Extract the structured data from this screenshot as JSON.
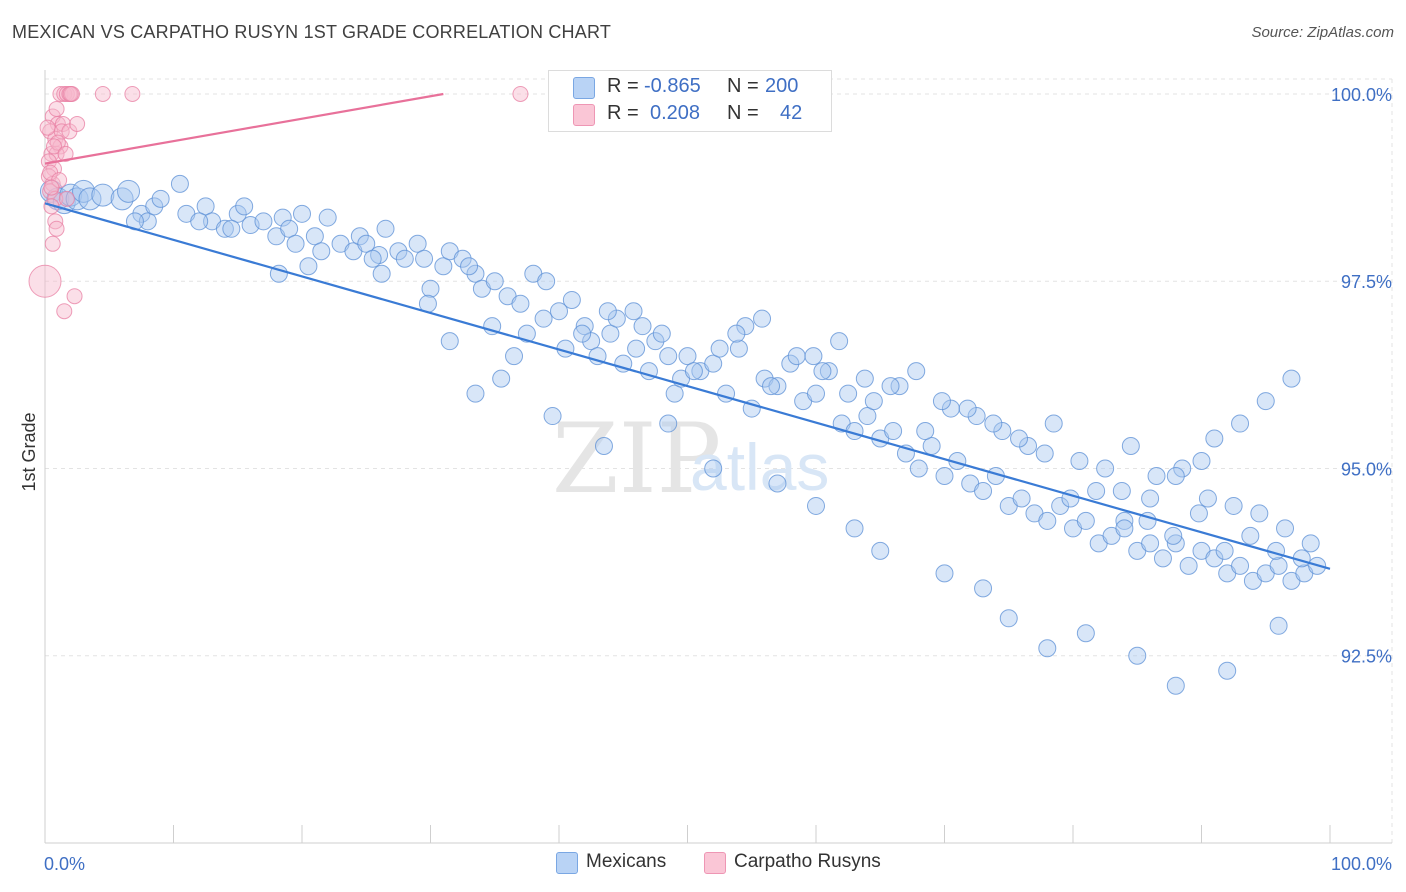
{
  "title": "MEXICAN VS CARPATHO RUSYN 1ST GRADE CORRELATION CHART",
  "source": "Source: ZipAtlas.com",
  "watermark": {
    "zip": "ZIP",
    "atlas": "atlas"
  },
  "legend": {
    "rows": [
      {
        "r_label": "R =",
        "r_value": "-0.865",
        "n_label": "N =",
        "n_value": "200"
      },
      {
        "r_label": "R =",
        "r_value": "0.208",
        "n_label": "N =",
        "n_value": "42"
      }
    ]
  },
  "bottom_legend": [
    "Mexicans",
    "Carpatho Rusyns"
  ],
  "colors": {
    "blue_fill": "#a9c7ef",
    "blue_stroke": "#5b8fd6",
    "blue_line": "#3a7bd5",
    "pink_fill": "#f7b9cd",
    "pink_stroke": "#e87fa3",
    "pink_line": "#e8719a",
    "tick_text": "#3f6fc4"
  },
  "chart_data": {
    "type": "scatter",
    "title": "MEXICAN VS CARPATHO RUSYN 1ST GRADE CORRELATION CHART",
    "xlabel": "",
    "ylabel": "1st Grade",
    "xlim": [
      0,
      100
    ],
    "ylim": [
      90.0,
      100.2
    ],
    "x_tick_labels": [
      "0.0%",
      "100.0%"
    ],
    "y_ticks": [
      92.5,
      95.0,
      97.5,
      100.0
    ],
    "y_tick_labels": [
      "92.5%",
      "95.0%",
      "97.5%",
      "100.0%"
    ],
    "grid": true,
    "series": [
      {
        "name": "Mexicans",
        "r": -0.865,
        "n": 200,
        "trend": {
          "x": [
            0,
            100
          ],
          "y": [
            98.54,
            93.66
          ]
        },
        "points": [
          [
            0.5,
            98.7
          ],
          [
            1.0,
            98.6
          ],
          [
            1.5,
            98.55
          ],
          [
            2.0,
            98.65
          ],
          [
            2.5,
            98.6
          ],
          [
            3.0,
            98.7
          ],
          [
            3.5,
            98.6
          ],
          [
            4.5,
            98.65
          ],
          [
            6.0,
            98.6
          ],
          [
            6.5,
            98.7
          ],
          [
            7.5,
            98.4
          ],
          [
            8.0,
            98.3
          ],
          [
            8.5,
            98.5
          ],
          [
            9.0,
            98.6
          ],
          [
            11.0,
            98.4
          ],
          [
            12.5,
            98.5
          ],
          [
            13.0,
            98.3
          ],
          [
            14.0,
            98.2
          ],
          [
            15.0,
            98.4
          ],
          [
            15.5,
            98.5
          ],
          [
            16.0,
            98.25
          ],
          [
            17.0,
            98.3
          ],
          [
            18.0,
            98.1
          ],
          [
            18.5,
            98.35
          ],
          [
            19.0,
            98.2
          ],
          [
            20.0,
            98.4
          ],
          [
            21.0,
            98.1
          ],
          [
            22.0,
            98.35
          ],
          [
            23.0,
            98.0
          ],
          [
            24.0,
            97.9
          ],
          [
            24.5,
            98.1
          ],
          [
            25.0,
            98.0
          ],
          [
            26.0,
            97.85
          ],
          [
            26.5,
            98.2
          ],
          [
            27.5,
            97.9
          ],
          [
            29.0,
            98.0
          ],
          [
            29.5,
            97.8
          ],
          [
            31.0,
            97.7
          ],
          [
            31.5,
            97.9
          ],
          [
            32.5,
            97.8
          ],
          [
            33.5,
            97.6
          ],
          [
            34.0,
            97.4
          ],
          [
            35.0,
            97.5
          ],
          [
            36.0,
            97.3
          ],
          [
            37.0,
            97.2
          ],
          [
            38.0,
            97.6
          ],
          [
            39.0,
            97.5
          ],
          [
            40.0,
            97.1
          ],
          [
            41.0,
            97.25
          ],
          [
            42.0,
            96.9
          ],
          [
            42.5,
            96.7
          ],
          [
            43.0,
            96.5
          ],
          [
            44.0,
            96.8
          ],
          [
            45.0,
            96.4
          ],
          [
            46.0,
            96.6
          ],
          [
            47.0,
            96.3
          ],
          [
            47.5,
            96.7
          ],
          [
            48.0,
            96.8
          ],
          [
            49.0,
            96.0
          ],
          [
            49.5,
            96.2
          ],
          [
            50.0,
            96.5
          ],
          [
            51.0,
            96.3
          ],
          [
            52.0,
            96.4
          ],
          [
            53.0,
            96.0
          ],
          [
            54.0,
            96.6
          ],
          [
            55.0,
            95.8
          ],
          [
            56.0,
            96.2
          ],
          [
            57.0,
            96.1
          ],
          [
            58.0,
            96.4
          ],
          [
            59.0,
            95.9
          ],
          [
            60.0,
            96.0
          ],
          [
            61.0,
            96.3
          ],
          [
            62.0,
            95.6
          ],
          [
            63.0,
            95.5
          ],
          [
            64.0,
            95.7
          ],
          [
            65.0,
            95.4
          ],
          [
            66.0,
            95.5
          ],
          [
            67.0,
            95.2
          ],
          [
            68.0,
            95.0
          ],
          [
            69.0,
            95.3
          ],
          [
            70.0,
            94.9
          ],
          [
            71.0,
            95.1
          ],
          [
            72.0,
            94.8
          ],
          [
            73.0,
            94.7
          ],
          [
            74.0,
            94.9
          ],
          [
            75.0,
            94.5
          ],
          [
            76.0,
            94.6
          ],
          [
            77.0,
            94.4
          ],
          [
            78.0,
            94.3
          ],
          [
            79.0,
            94.5
          ],
          [
            80.0,
            94.2
          ],
          [
            81.0,
            94.3
          ],
          [
            82.0,
            94.0
          ],
          [
            83.0,
            94.1
          ],
          [
            84.0,
            94.3
          ],
          [
            85.0,
            93.9
          ],
          [
            86.0,
            94.0
          ],
          [
            87.0,
            93.8
          ],
          [
            88.0,
            94.0
          ],
          [
            89.0,
            93.7
          ],
          [
            90.0,
            93.9
          ],
          [
            91.0,
            93.8
          ],
          [
            92.0,
            93.6
          ],
          [
            93.0,
            93.7
          ],
          [
            94.0,
            93.5
          ],
          [
            95.0,
            93.6
          ],
          [
            96.0,
            93.7
          ],
          [
            97.0,
            93.5
          ],
          [
            98.0,
            93.6
          ],
          [
            99.0,
            93.7
          ],
          [
            10.5,
            98.8
          ],
          [
            14.5,
            98.2
          ],
          [
            21.5,
            97.9
          ],
          [
            28.0,
            97.8
          ],
          [
            30.0,
            97.4
          ],
          [
            33.0,
            97.7
          ],
          [
            37.5,
            96.8
          ],
          [
            40.5,
            96.6
          ],
          [
            44.5,
            97.0
          ],
          [
            46.5,
            96.9
          ],
          [
            48.5,
            96.5
          ],
          [
            50.5,
            96.3
          ],
          [
            52.5,
            96.6
          ],
          [
            54.5,
            96.9
          ],
          [
            56.5,
            96.1
          ],
          [
            58.5,
            96.5
          ],
          [
            60.5,
            96.3
          ],
          [
            62.5,
            96.0
          ],
          [
            64.5,
            95.9
          ],
          [
            66.5,
            96.1
          ],
          [
            68.5,
            95.5
          ],
          [
            70.5,
            95.8
          ],
          [
            72.5,
            95.7
          ],
          [
            74.5,
            95.5
          ],
          [
            76.5,
            95.3
          ],
          [
            78.5,
            95.6
          ],
          [
            80.5,
            95.1
          ],
          [
            82.5,
            95.0
          ],
          [
            84.5,
            95.3
          ],
          [
            86.5,
            94.9
          ],
          [
            88.5,
            95.0
          ],
          [
            90.5,
            94.6
          ],
          [
            92.5,
            94.5
          ],
          [
            94.5,
            94.4
          ],
          [
            96.5,
            94.2
          ],
          [
            98.5,
            94.0
          ],
          [
            7.0,
            98.3
          ],
          [
            12.0,
            98.3
          ],
          [
            19.5,
            98.0
          ],
          [
            25.5,
            97.8
          ],
          [
            20.5,
            97.7
          ],
          [
            26.2,
            97.6
          ],
          [
            29.8,
            97.2
          ],
          [
            34.8,
            96.9
          ],
          [
            38.8,
            97.0
          ],
          [
            41.8,
            96.8
          ],
          [
            43.8,
            97.1
          ],
          [
            45.8,
            97.1
          ],
          [
            53.8,
            96.8
          ],
          [
            55.8,
            97.0
          ],
          [
            59.8,
            96.5
          ],
          [
            61.8,
            96.7
          ],
          [
            63.8,
            96.2
          ],
          [
            65.8,
            96.1
          ],
          [
            67.8,
            96.3
          ],
          [
            69.8,
            95.9
          ],
          [
            71.8,
            95.8
          ],
          [
            73.8,
            95.6
          ],
          [
            75.8,
            95.4
          ],
          [
            77.8,
            95.2
          ],
          [
            79.8,
            94.6
          ],
          [
            81.8,
            94.7
          ],
          [
            83.8,
            94.7
          ],
          [
            85.8,
            94.3
          ],
          [
            87.8,
            94.1
          ],
          [
            89.8,
            94.4
          ],
          [
            91.8,
            93.9
          ],
          [
            93.8,
            94.1
          ],
          [
            95.8,
            93.9
          ],
          [
            97.8,
            93.8
          ],
          [
            18.2,
            97.6
          ],
          [
            31.5,
            96.7
          ],
          [
            33.5,
            96.0
          ],
          [
            35.5,
            96.2
          ],
          [
            36.5,
            96.5
          ],
          [
            39.5,
            95.7
          ],
          [
            43.5,
            95.3
          ],
          [
            48.5,
            95.6
          ],
          [
            52.0,
            95.0
          ],
          [
            57.0,
            94.8
          ],
          [
            60.0,
            94.5
          ],
          [
            63.0,
            94.2
          ],
          [
            65.0,
            93.9
          ],
          [
            70.0,
            93.6
          ],
          [
            73.0,
            93.4
          ],
          [
            75.0,
            93.0
          ],
          [
            78.0,
            92.6
          ],
          [
            81.0,
            92.8
          ],
          [
            85.0,
            92.5
          ],
          [
            88.0,
            92.1
          ],
          [
            92.0,
            92.3
          ],
          [
            96.0,
            92.9
          ],
          [
            84.0,
            94.2
          ],
          [
            86.0,
            94.6
          ],
          [
            88.0,
            94.9
          ],
          [
            90.0,
            95.1
          ],
          [
            91.0,
            95.4
          ],
          [
            93.0,
            95.6
          ],
          [
            95.0,
            95.9
          ],
          [
            97.0,
            96.2
          ]
        ]
      },
      {
        "name": "Carpatho Rusyns",
        "r": 0.208,
        "n": 42,
        "trend": {
          "x": [
            0,
            31
          ],
          "y": [
            99.07,
            100.0
          ]
        },
        "points": [
          [
            1.2,
            100.0
          ],
          [
            1.5,
            100.0
          ],
          [
            1.7,
            100.0
          ],
          [
            1.9,
            100.0
          ],
          [
            2.1,
            100.0
          ],
          [
            4.5,
            100.0
          ],
          [
            6.8,
            100.0
          ],
          [
            37.0,
            100.0
          ],
          [
            0.6,
            99.7
          ],
          [
            1.0,
            99.6
          ],
          [
            1.4,
            99.6
          ],
          [
            0.4,
            99.5
          ],
          [
            0.8,
            99.4
          ],
          [
            1.2,
            99.3
          ],
          [
            0.5,
            99.2
          ],
          [
            0.9,
            99.2
          ],
          [
            0.3,
            99.1
          ],
          [
            0.7,
            99.0
          ],
          [
            0.3,
            98.9
          ],
          [
            0.6,
            98.8
          ],
          [
            0.4,
            98.7
          ],
          [
            0.8,
            98.6
          ],
          [
            0.5,
            98.5
          ],
          [
            0.8,
            98.3
          ],
          [
            0.9,
            98.2
          ],
          [
            0.6,
            98.0
          ],
          [
            0.0,
            97.5
          ],
          [
            2.3,
            97.3
          ],
          [
            1.5,
            97.1
          ],
          [
            1.3,
            99.5
          ],
          [
            1.9,
            99.5
          ],
          [
            1.0,
            99.35
          ],
          [
            0.7,
            99.3
          ],
          [
            0.2,
            99.55
          ],
          [
            0.9,
            99.8
          ],
          [
            2.0,
            100.0
          ],
          [
            1.6,
            99.2
          ],
          [
            0.4,
            98.95
          ],
          [
            1.1,
            98.85
          ],
          [
            0.5,
            98.75
          ],
          [
            1.7,
            98.6
          ],
          [
            2.5,
            99.6
          ]
        ]
      }
    ]
  }
}
